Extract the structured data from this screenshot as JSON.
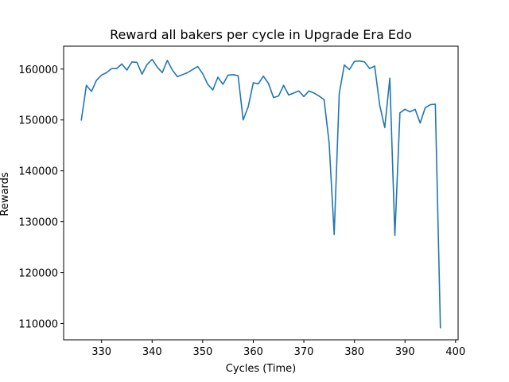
{
  "chart_data": {
    "type": "line",
    "title": "Reward all bakers per cycle in Upgrade Era Edo",
    "xlabel": "Cycles (Time)",
    "ylabel": "Rewards",
    "xlim": [
      322.5,
      400.5
    ],
    "ylim": [
      106800,
      164500
    ],
    "xticks": [
      330,
      340,
      350,
      360,
      370,
      380,
      390,
      400
    ],
    "yticks": [
      110000,
      120000,
      130000,
      140000,
      150000,
      160000
    ],
    "xtick_labels": [
      "330",
      "340",
      "350",
      "360",
      "370",
      "380",
      "390",
      "400"
    ],
    "ytick_labels": [
      "110000",
      "120000",
      "130000",
      "140000",
      "150000",
      "160000"
    ],
    "grid": false,
    "legend": "none",
    "colors": {
      "line": "#1f77b4",
      "axis": "#000000",
      "background": "#ffffff"
    },
    "series": [
      {
        "x": [
          326,
          327,
          328,
          329,
          330,
          331,
          332,
          333,
          334,
          335,
          336,
          337,
          338,
          339,
          340,
          341,
          342,
          343,
          344,
          345,
          346,
          347,
          348,
          349,
          350,
          351,
          352,
          353,
          354,
          355,
          356,
          357,
          358,
          359,
          360,
          361,
          362,
          363,
          364,
          365,
          366,
          367,
          368,
          369,
          370,
          371,
          372,
          373,
          374,
          375,
          376,
          377,
          378,
          379,
          380,
          381,
          382,
          383,
          384,
          385,
          386,
          387,
          388,
          389,
          390,
          391,
          392,
          393,
          394,
          395,
          396,
          397
        ],
        "values": [
          150000,
          156800,
          155600,
          157800,
          158800,
          159300,
          160100,
          160100,
          161000,
          159800,
          161400,
          161300,
          159000,
          160900,
          161900,
          160400,
          159300,
          161700,
          159800,
          158500,
          158900,
          159300,
          159900,
          160500,
          159100,
          157000,
          155900,
          158400,
          157000,
          158800,
          158900,
          158700,
          150000,
          152600,
          157300,
          157100,
          158600,
          157200,
          154400,
          154700,
          156800,
          154900,
          155300,
          155700,
          154600,
          155700,
          155300,
          154700,
          154000,
          145500,
          127500,
          155200,
          160800,
          159900,
          161500,
          161600,
          161400,
          160100,
          160600,
          152900,
          148500,
          158200,
          127300,
          151400,
          152100,
          151600,
          152100,
          149400,
          152400,
          153000,
          153100,
          109200
        ]
      }
    ]
  }
}
